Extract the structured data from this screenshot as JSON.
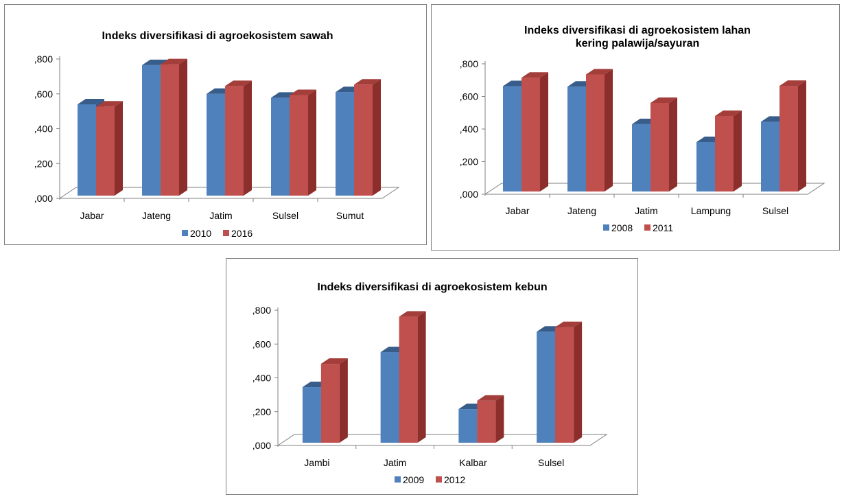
{
  "colors": {
    "s1_front": "#4f81bd",
    "s1_side": "#2e5a8e",
    "s1_top": "#385d8a",
    "s2_front": "#c0504d",
    "s2_side": "#8c2f2c",
    "s2_top": "#a33e3b",
    "axis": "#7f7f7f"
  },
  "chart_data": [
    {
      "type": "bar",
      "title_lines": [
        "Indeks diversifikasi di agroekosistem sawah"
      ],
      "categories": [
        "Jabar",
        "Jateng",
        "Jatim",
        "Sulsel",
        "Sumut"
      ],
      "series": [
        {
          "name": "2010",
          "values": [
            0.54,
            0.765,
            0.6,
            0.578,
            0.61
          ]
        },
        {
          "name": "2016",
          "values": [
            0.527,
            0.77,
            0.645,
            0.593,
            0.653
          ]
        }
      ],
      "ylim": [
        0,
        0.8
      ],
      "yticks": [
        ",000",
        ",200",
        ",400",
        ",600",
        ",800"
      ],
      "xlabel": "",
      "ylabel": "",
      "legend": "bottom",
      "grid": false
    },
    {
      "type": "bar",
      "title_lines": [
        "Indeks diversifikasi di agroekosistem lahan",
        "kering palawija/sayuran"
      ],
      "categories": [
        "Jabar",
        "Jateng",
        "Jatim",
        "Lampung",
        "Sulsel"
      ],
      "series": [
        {
          "name": "2008",
          "values": [
            0.663,
            0.66,
            0.43,
            0.32,
            0.445
          ]
        },
        {
          "name": "2011",
          "values": [
            0.715,
            0.735,
            0.56,
            0.48,
            0.665
          ]
        }
      ],
      "ylim": [
        0,
        0.8
      ],
      "yticks": [
        ",000",
        ",200",
        ",400",
        ",600",
        ",800"
      ],
      "xlabel": "",
      "ylabel": "",
      "legend": "bottom",
      "grid": false
    },
    {
      "type": "bar",
      "title_lines": [
        "Indeks diversifikasi di agroekosistem kebun"
      ],
      "categories": [
        "Jambi",
        "Jatim",
        "Kalbar",
        "Sulsel"
      ],
      "series": [
        {
          "name": "2009",
          "values": [
            0.345,
            0.552,
            0.215,
            0.673
          ]
        },
        {
          "name": "2012",
          "values": [
            0.483,
            0.762,
            0.265,
            0.7
          ]
        }
      ],
      "ylim": [
        0,
        0.8
      ],
      "yticks": [
        ",000",
        ",200",
        ",400",
        ",600",
        ",800"
      ],
      "xlabel": "",
      "ylabel": "",
      "legend": "bottom",
      "grid": false
    }
  ]
}
